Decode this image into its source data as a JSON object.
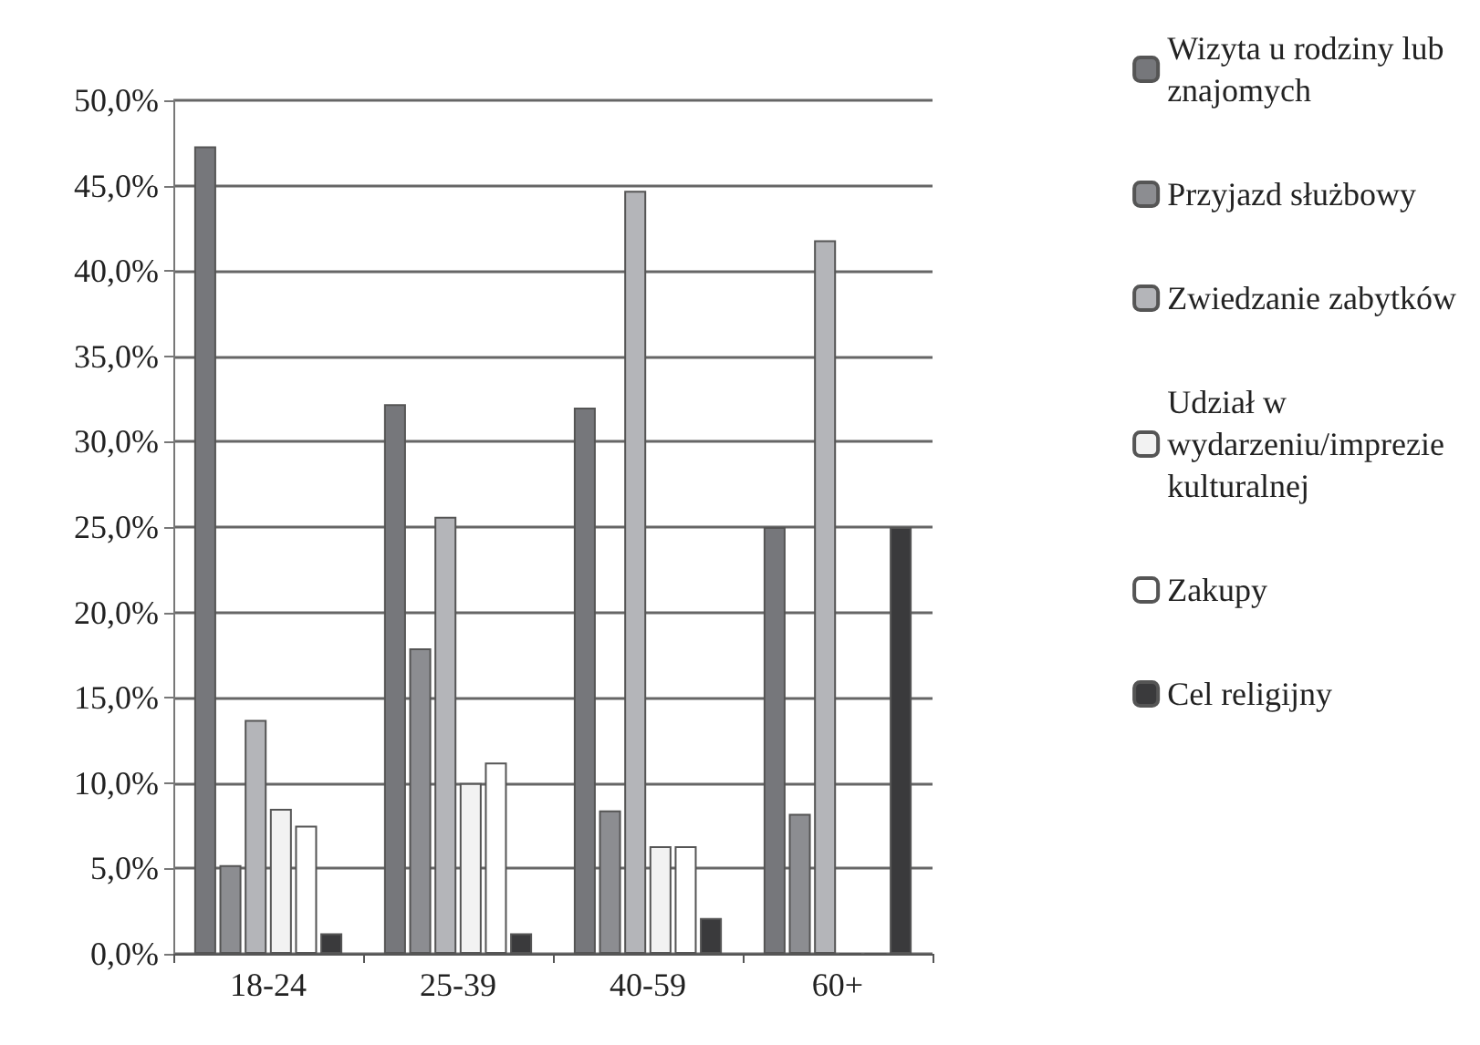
{
  "chart_data": {
    "type": "bar",
    "categories": [
      "18-24",
      "25-39",
      "40-59",
      "60+"
    ],
    "series": [
      {
        "name": "Wizyta u rodziny lub\nznajomych",
        "color": "#76777b",
        "values": [
          47.3,
          32.2,
          32.0,
          25.0
        ]
      },
      {
        "name": "Przyjazd służbowy",
        "color": "#8c8d91",
        "values": [
          5.2,
          17.9,
          8.4,
          8.2
        ]
      },
      {
        "name": "Zwiedzanie zabytków",
        "color": "#b4b5b9",
        "values": [
          13.7,
          25.6,
          44.7,
          41.8
        ]
      },
      {
        "name": "Udział w\nwydarzeniu/imprezie\nkulturalnej",
        "color": "#f2f2f2",
        "values": [
          8.5,
          10.0,
          6.3,
          0
        ]
      },
      {
        "name": "Zakupy",
        "color": "#ffffff",
        "values": [
          7.5,
          11.2,
          6.3,
          0
        ]
      },
      {
        "name": "Cel religijny",
        "color": "#3a3a3c",
        "values": [
          1.2,
          1.2,
          2.1,
          25.0
        ]
      }
    ],
    "ylim": [
      0,
      50
    ],
    "yticks": [
      {
        "value": 0,
        "label": "0,0%"
      },
      {
        "value": 5,
        "label": "5,0%"
      },
      {
        "value": 10,
        "label": "10,0%"
      },
      {
        "value": 15,
        "label": "15,0%"
      },
      {
        "value": 20,
        "label": "20,0%"
      },
      {
        "value": 25,
        "label": "25,0%"
      },
      {
        "value": 30,
        "label": "30,0%"
      },
      {
        "value": 35,
        "label": "35,0%"
      },
      {
        "value": 40,
        "label": "40,0%"
      },
      {
        "value": 45,
        "label": "45,0%"
      },
      {
        "value": 50,
        "label": "50,0%"
      }
    ],
    "grid": "y",
    "legend": "right"
  }
}
